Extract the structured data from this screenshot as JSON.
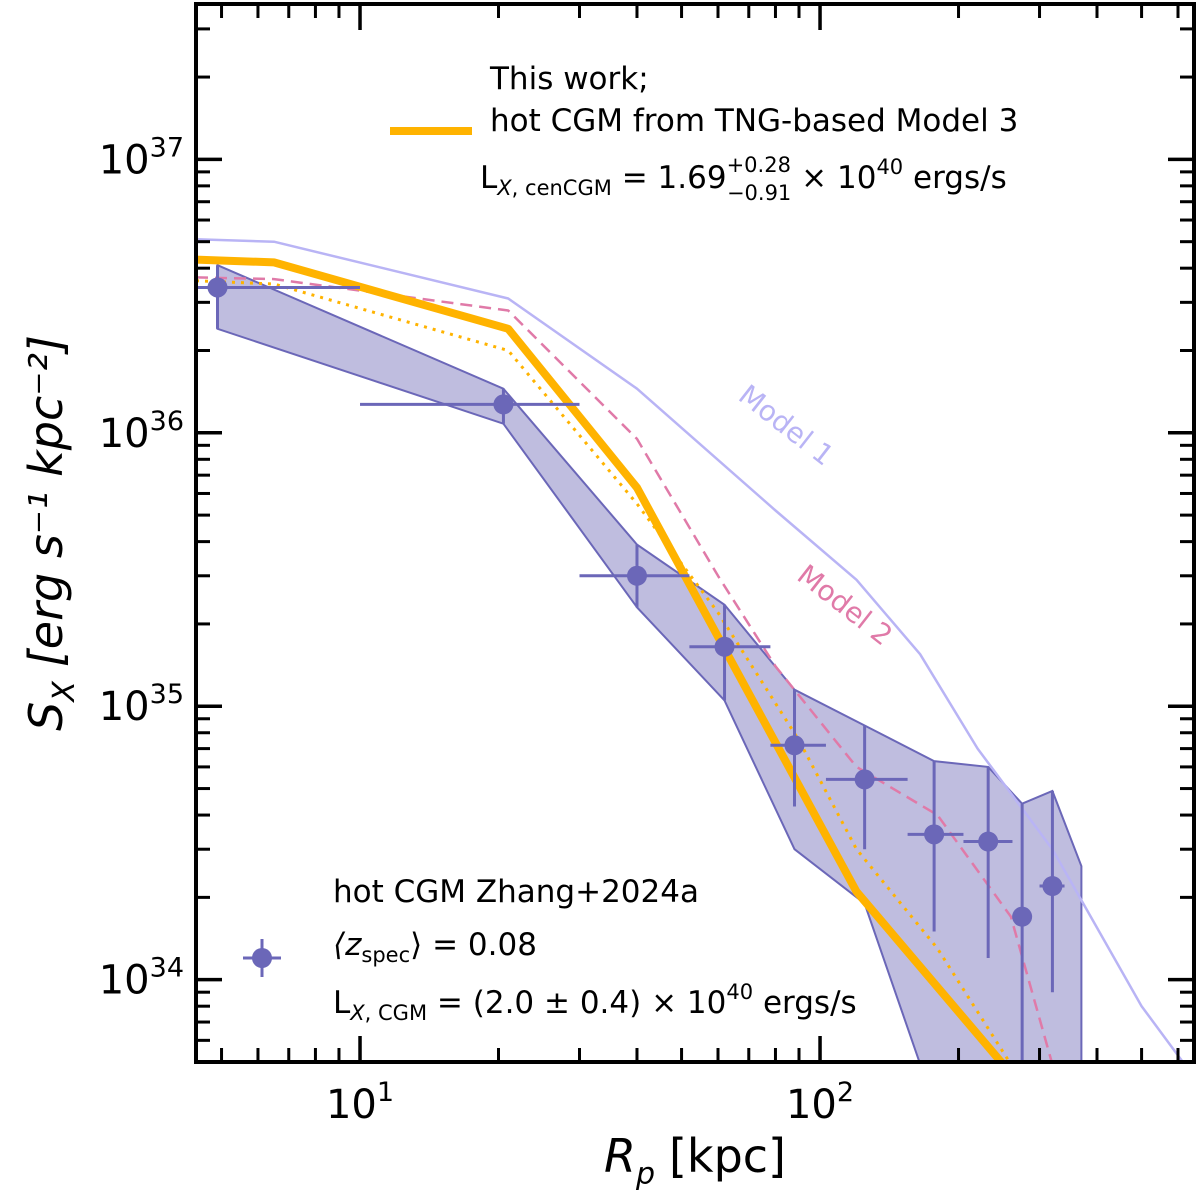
{
  "chart_data": {
    "type": "line",
    "xlabel": "R",
    "xlabel_sub": "p",
    "xlabel_unit": "[kpc]",
    "ylabel": "S",
    "ylabel_sub": "X",
    "ylabel_unit": "[erg s⁻¹ kpc⁻²]",
    "x_scale": "log",
    "y_scale": "log",
    "xlim": [
      4.4,
      650
    ],
    "ylim": [
      5e+33,
      3.7e+37
    ],
    "x_ticks": [
      {
        "value": 10,
        "base": "10",
        "exp": "1"
      },
      {
        "value": 100,
        "base": "10",
        "exp": "2"
      }
    ],
    "y_ticks": [
      {
        "value": 1e+34,
        "base": "10",
        "exp": "34"
      },
      {
        "value": 1e+35,
        "base": "10",
        "exp": "35"
      },
      {
        "value": 1e+36,
        "base": "10",
        "exp": "36"
      },
      {
        "value": 1e+37,
        "base": "10",
        "exp": "37"
      }
    ],
    "series": [
      {
        "name": "This work; hot CGM from TNG-based Model 3",
        "style": "solid-thick",
        "color": "#FFB300",
        "x": [
          4.4,
          6.5,
          21,
          40,
          120,
          250
        ],
        "y": [
          4.3e+36,
          4.2e+36,
          2.4e+36,
          6.3e+35,
          2.1e+34,
          4.9e+33
        ]
      },
      {
        "name": "Model 1",
        "style": "solid-thin",
        "color": "#B9B4F5",
        "x": [
          4.4,
          6.5,
          21,
          40,
          80,
          120,
          165,
          220,
          320,
          500,
          620
        ],
        "y": [
          5.1e+36,
          5e+36,
          3.1e+36,
          1.45e+36,
          5.2e+35,
          2.9e+35,
          1.55e+35,
          7e+34,
          3e+34,
          8e+33,
          4.9e+33
        ]
      },
      {
        "name": "Model 2",
        "style": "dashed",
        "color": "#E07AA8",
        "x": [
          4.4,
          6.5,
          21,
          40,
          60,
          80,
          120,
          180,
          260,
          320
        ],
        "y": [
          3.7e+36,
          3.65e+36,
          2.8e+36,
          9.5e+35,
          3e+35,
          1.4e+35,
          6e+34,
          4e+34,
          1.7e+34,
          4.9e+33
        ]
      },
      {
        "name": "dotted",
        "style": "dotted",
        "color": "#FFB300",
        "x": [
          4.4,
          6.5,
          21,
          40,
          60,
          90,
          120,
          180,
          260
        ],
        "y": [
          3.6e+36,
          3.5e+36,
          2e+36,
          5.5e+35,
          2.2e+35,
          7.5e+34,
          3e+34,
          1.3e+34,
          4.9e+33
        ]
      }
    ],
    "data_points": {
      "name": "hot CGM Zhang+2024a",
      "color": "#6B67B8",
      "points": [
        {
          "x": 4.9,
          "y": 3.4e+36,
          "xlo": 3.0,
          "xhi": 10.0,
          "ylo": 2.4e+36,
          "yhi": 4.1e+36
        },
        {
          "x": 20.5,
          "y": 1.27e+36,
          "xlo": 10.0,
          "xhi": 30.0,
          "ylo": 1.08e+36,
          "yhi": 1.45e+36
        },
        {
          "x": 40.0,
          "y": 3e+35,
          "xlo": 30.0,
          "xhi": 52.0,
          "ylo": 2.3e+35,
          "yhi": 3.9e+35
        },
        {
          "x": 62.0,
          "y": 1.65e+35,
          "xlo": 52.0,
          "xhi": 78.0,
          "ylo": 1.05e+35,
          "yhi": 2.35e+35
        },
        {
          "x": 88.0,
          "y": 7.2e+34,
          "xlo": 78.0,
          "xhi": 103.0,
          "ylo": 4.3e+34,
          "yhi": 1.15e+35
        },
        {
          "x": 125.0,
          "y": 5.4e+34,
          "xlo": 103.0,
          "xhi": 155.0,
          "ylo": 3e+34,
          "yhi": 8.5e+34
        },
        {
          "x": 177.0,
          "y": 3.4e+34,
          "xlo": 155.0,
          "xhi": 205.0,
          "ylo": 1.5e+34,
          "yhi": 6.3e+34
        },
        {
          "x": 232.0,
          "y": 3.2e+34,
          "xlo": 205.0,
          "xhi": 262.0,
          "ylo": 1.2e+34,
          "yhi": 6e+34
        },
        {
          "x": 275.0,
          "y": 1.7e+34,
          "xlo": 262.0,
          "xhi": 288.0,
          "ylo": 4e+33,
          "yhi": 4.4e+34
        },
        {
          "x": 320.0,
          "y": 2.2e+34,
          "xlo": 300.0,
          "xhi": 340.0,
          "ylo": 9e+33,
          "yhi": 4.9e+34
        }
      ],
      "band": {
        "x": [
          4.9,
          20.5,
          40.0,
          62.0,
          88.0,
          125.0,
          177.0,
          232.0,
          275.0,
          320.0,
          370.0
        ],
        "lower": [
          2.4e+36,
          1.08e+36,
          2.3e+35,
          1.05e+35,
          3e+34,
          1.9e+34,
          3.5e+33,
          3.5e+33,
          3.5e+33,
          3.5e+33,
          3.5e+33
        ],
        "upper": [
          4.1e+36,
          1.45e+36,
          3.9e+35,
          2.35e+35,
          1.15e+35,
          8.5e+34,
          6.3e+34,
          6e+34,
          4.4e+34,
          4.9e+34,
          2.6e+34
        ]
      }
    },
    "model_labels": [
      {
        "text": "Model 1",
        "color": "#B9B4F5",
        "x": 82,
        "y": 1e+36
      },
      {
        "text": "Model 2",
        "color": "#E07AA8",
        "x": 110,
        "y": 2.2e+35
      }
    ]
  },
  "legend_top": {
    "line1": "This work;",
    "line2": "hot CGM from TNG-based Model 3",
    "lum_prefix": "L",
    "lum_sub": "X, cenCGM",
    "lum_eq": " = 1.69",
    "lum_plus": "+0.28",
    "lum_minus": "−0.91",
    "lum_times": " × 10",
    "lum_exp": "40",
    "lum_unit": " ergs/s"
  },
  "legend_bottom": {
    "line1": "hot CGM Zhang+2024a",
    "z_open": "⟨z",
    "z_sub": "spec",
    "z_close": "⟩ = 0.08",
    "lum_prefix": "L",
    "lum_sub": "X, CGM",
    "lum_eq": " = (2.0 ± 0.4) × 10",
    "lum_exp": "40",
    "lum_unit": " ergs/s"
  }
}
